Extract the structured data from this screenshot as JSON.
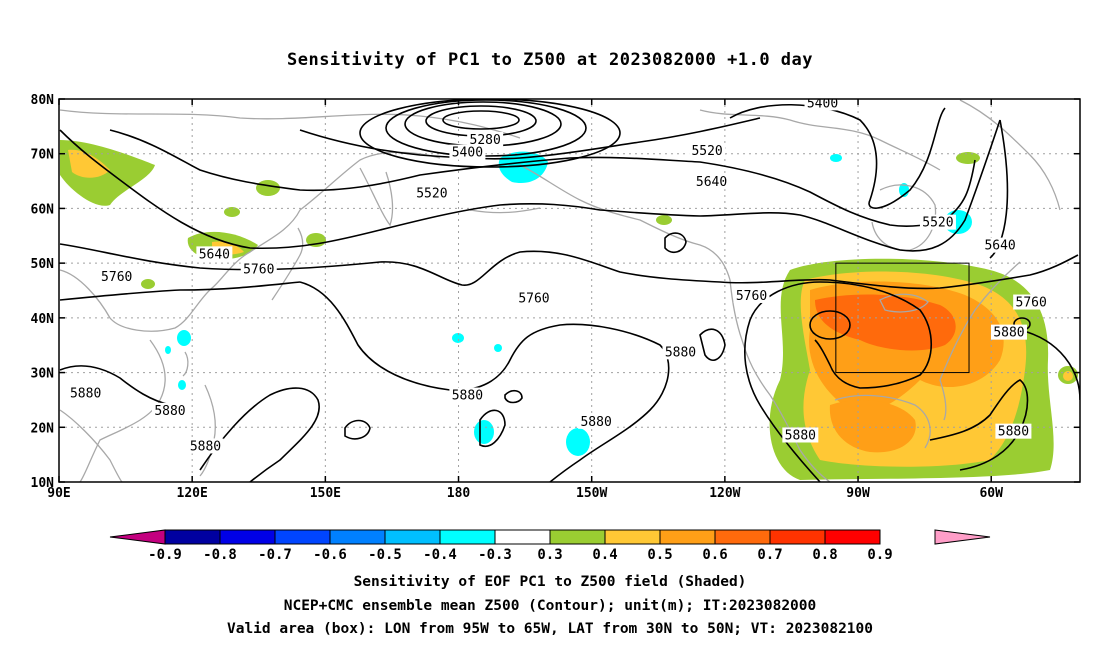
{
  "title": "Sensitivity of PC1 to Z500 at 2023082000 +1.0 day",
  "map": {
    "lon_ticks": [
      {
        "lon": 90,
        "label": "90E"
      },
      {
        "lon": 120,
        "label": "120E"
      },
      {
        "lon": 150,
        "label": "150E"
      },
      {
        "lon": 180,
        "label": "180"
      },
      {
        "lon": 210,
        "label": "150W"
      },
      {
        "lon": 240,
        "label": "120W"
      },
      {
        "lon": 270,
        "label": "90W"
      },
      {
        "lon": 300,
        "label": "60W"
      }
    ],
    "lat_ticks": [
      {
        "lat": 80,
        "label": "80N"
      },
      {
        "lat": 70,
        "label": "70N"
      },
      {
        "lat": 60,
        "label": "60N"
      },
      {
        "lat": 50,
        "label": "50N"
      },
      {
        "lat": 40,
        "label": "40N"
      },
      {
        "lat": 30,
        "label": "30N"
      },
      {
        "lat": 20,
        "label": "20N"
      },
      {
        "lat": 10,
        "label": "10N"
      }
    ],
    "contour_labels": [
      {
        "text": "5280",
        "lon": 186,
        "lat": 72.5
      },
      {
        "text": "5400",
        "lon": 182,
        "lat": 70.2
      },
      {
        "text": "5400",
        "lon": 262,
        "lat": 79.2
      },
      {
        "text": "5520",
        "lon": 174,
        "lat": 62.7
      },
      {
        "text": "5520",
        "lon": 236,
        "lat": 70.5
      },
      {
        "text": "5520",
        "lon": 288,
        "lat": 57.4
      },
      {
        "text": "5640",
        "lon": 125,
        "lat": 51.6
      },
      {
        "text": "5640",
        "lon": 237,
        "lat": 64.8
      },
      {
        "text": "5640",
        "lon": 302,
        "lat": 53.2
      },
      {
        "text": "5760",
        "lon": 103,
        "lat": 47.5
      },
      {
        "text": "5760",
        "lon": 135,
        "lat": 48.8
      },
      {
        "text": "5760",
        "lon": 197,
        "lat": 43.5
      },
      {
        "text": "5760",
        "lon": 246,
        "lat": 44.0
      },
      {
        "text": "5760",
        "lon": 309,
        "lat": 42.8
      },
      {
        "text": "5880",
        "lon": 96,
        "lat": 26.2
      },
      {
        "text": "5880",
        "lon": 115,
        "lat": 23.0
      },
      {
        "text": "5880",
        "lon": 123,
        "lat": 16.5
      },
      {
        "text": "5880",
        "lon": 182,
        "lat": 25.8
      },
      {
        "text": "5880",
        "lon": 211,
        "lat": 21.0
      },
      {
        "text": "5880",
        "lon": 230,
        "lat": 33.7
      },
      {
        "text": "5880",
        "lon": 257,
        "lat": 18.5
      },
      {
        "text": "5880",
        "lon": 304,
        "lat": 37.3
      },
      {
        "text": "5880",
        "lon": 305,
        "lat": 19.2
      }
    ],
    "valid_box": {
      "lon_min": 265,
      "lon_max": 295,
      "lat_min": 30,
      "lat_max": 50
    }
  },
  "colorbar": {
    "tick_labels": [
      "-0.9",
      "-0.8",
      "-0.7",
      "-0.6",
      "-0.5",
      "-0.4",
      "-0.3",
      "0.3",
      "0.4",
      "0.5",
      "0.6",
      "0.7",
      "0.8",
      "0.9"
    ],
    "colors": [
      "#c3007f",
      "#0000a0",
      "#0000e6",
      "#0045ff",
      "#0080ff",
      "#00bfff",
      "#00ffff",
      "#ffffff",
      "#9acd32",
      "#ffc835",
      "#ff9f17",
      "#ff6a0c",
      "#ff3300",
      "#ff0000",
      "#ff9ec8"
    ]
  },
  "captions": [
    "Sensitivity of EOF PC1 to Z500 field (Shaded)",
    "NCEP+CMC ensemble mean Z500 (Contour); unit(m); IT:2023082000",
    "Valid area (box): LON from 95W to 65W, LAT from 30N to 50N; VT: 2023082100"
  ]
}
